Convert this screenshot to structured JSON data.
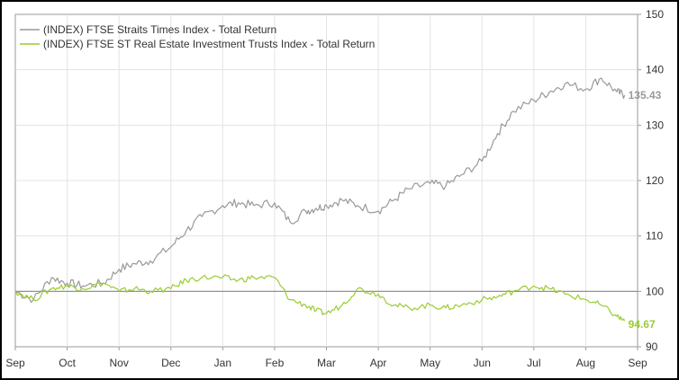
{
  "chart_data": {
    "type": "line",
    "title": "",
    "xlabel": "",
    "ylabel": "",
    "ylim": [
      90,
      150
    ],
    "yticks": [
      90,
      100,
      110,
      120,
      130,
      140,
      150
    ],
    "y_axis_side": "right",
    "x_axis_type": "month",
    "x_months": [
      "Sep",
      "Oct",
      "Nov",
      "Dec",
      "Jan",
      "Feb",
      "Mar",
      "Apr",
      "May",
      "Jun",
      "Jul",
      "Aug",
      "Sep"
    ],
    "x": [
      0,
      0.35,
      0.7,
      1.0,
      1.3,
      1.7,
      2.0,
      2.3,
      2.6,
      3.0,
      3.3,
      3.6,
      4.0,
      4.3,
      4.6,
      5.0,
      5.3,
      5.6,
      5.8,
      6.0,
      6.3,
      6.6,
      7.0,
      7.3,
      7.6,
      8.0,
      8.3,
      8.6,
      9.0,
      9.3,
      9.6,
      10.0,
      10.3,
      10.6,
      11.0,
      11.3,
      11.6,
      11.75
    ],
    "baseline": 100,
    "grid": true,
    "legend_position": "top-left",
    "series": [
      {
        "name": "(INDEX) FTSE Straits Times Index - Total Return",
        "color": "#999999",
        "end_label": "135.43",
        "values": [
          100,
          98.5,
          102.5,
          101.5,
          101.0,
          101.5,
          104,
          105,
          105.5,
          108,
          111,
          113.5,
          115.5,
          116.0,
          115.5,
          116.0,
          112.5,
          114.5,
          115.0,
          115.5,
          116.5,
          115.5,
          114.5,
          116.5,
          118.5,
          119.5,
          119.0,
          121.0,
          123.5,
          128.5,
          132.5,
          134.5,
          136.0,
          137.5,
          136.5,
          138.5,
          136.0,
          135.43
        ]
      },
      {
        "name": "(INDEX) FTSE ST Real Estate Investment Trusts Index - Total Return",
        "color": "#99cc33",
        "end_label": "94.67",
        "values": [
          100,
          98.5,
          100.5,
          101.0,
          100.5,
          101.5,
          100.0,
          100.5,
          100.0,
          100.5,
          102.0,
          102.5,
          102.5,
          102.0,
          102.5,
          102.5,
          98.5,
          97.5,
          96.5,
          96.0,
          97.5,
          100.5,
          99.5,
          97.5,
          97.0,
          97.5,
          97.0,
          97.5,
          98.5,
          99.0,
          100.0,
          101.0,
          100.5,
          99.5,
          98.5,
          97.5,
          95.5,
          94.67
        ]
      }
    ]
  }
}
